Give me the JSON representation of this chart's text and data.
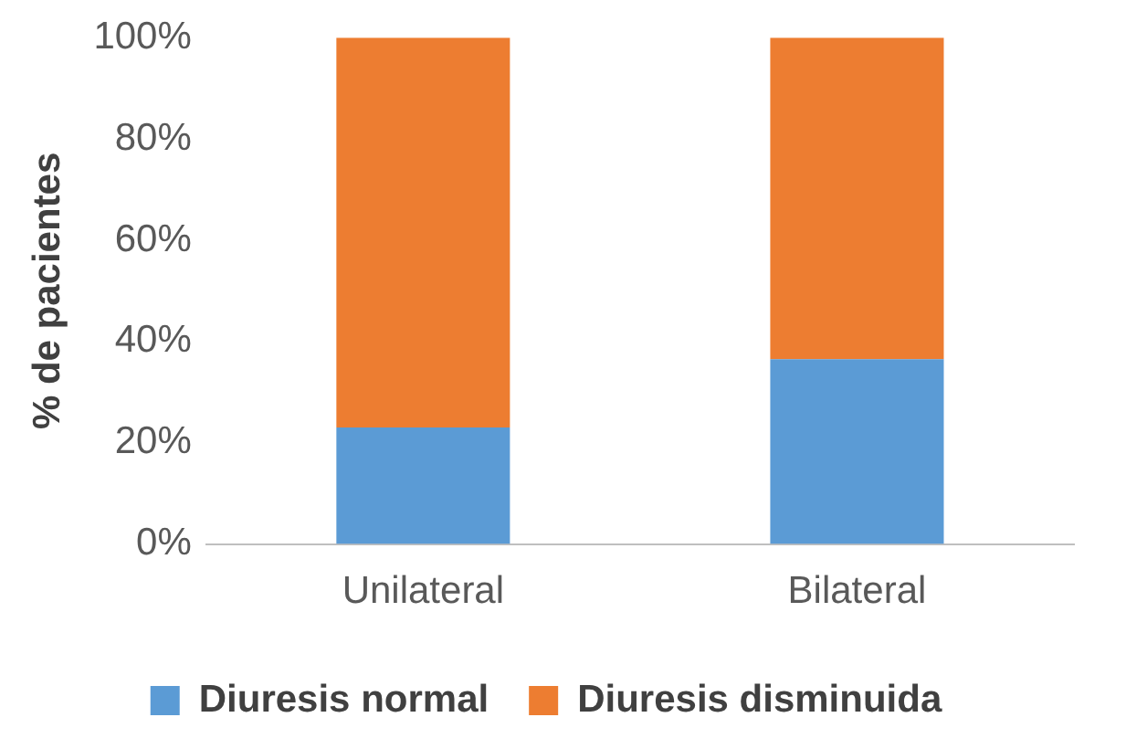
{
  "chart_data": {
    "type": "bar",
    "stacked": true,
    "ylabel": "% de pacientes",
    "categories": [
      "Unilateral",
      "Bilateral"
    ],
    "series": [
      {
        "name": "Diuresis normal",
        "color": "#5b9bd5",
        "values": [
          23,
          36.5
        ]
      },
      {
        "name": "Diuresis disminuida",
        "color": "#ed7d31",
        "values": [
          77,
          63.5
        ]
      }
    ],
    "ylim": [
      0,
      100
    ],
    "yticks": [
      {
        "value": 0,
        "label": "0%"
      },
      {
        "value": 20,
        "label": "20%"
      },
      {
        "value": 40,
        "label": "40%"
      },
      {
        "value": 60,
        "label": "60%"
      },
      {
        "value": 80,
        "label": "80%"
      },
      {
        "value": 100,
        "label": "100%"
      }
    ],
    "grid": false,
    "legend": "bottom"
  }
}
